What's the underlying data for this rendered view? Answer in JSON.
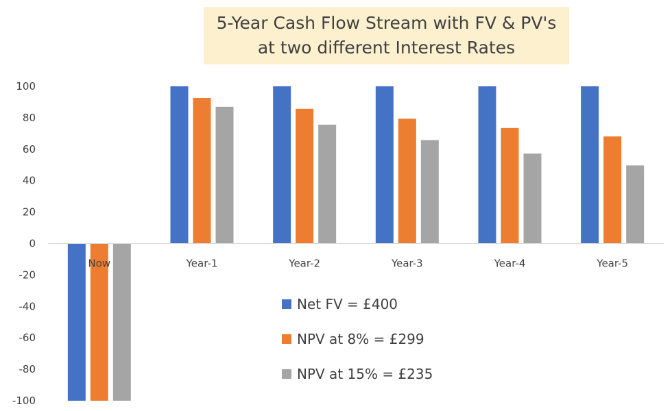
{
  "chart_data": {
    "type": "bar",
    "title": "5-Year Cash Flow Stream with FV & PV's at two different Interest Rates",
    "title_lines": [
      "5-Year Cash Flow Stream with FV & PV's",
      "at two different Interest Rates"
    ],
    "categories": [
      "Now",
      "Year-1",
      "Year-2",
      "Year-3",
      "Year-4",
      "Year-5"
    ],
    "series": [
      {
        "name": "Net FV          = £400",
        "color": "#4472c4",
        "values": [
          -100,
          100,
          100,
          100,
          100,
          100
        ]
      },
      {
        "name": "NPV at 8%   = £299",
        "color": "#ed7d31",
        "values": [
          -100,
          92.6,
          85.7,
          79.4,
          73.5,
          68.1
        ]
      },
      {
        "name": "NPV at 15% = £235",
        "color": "#a5a5a5",
        "values": [
          -100,
          87.0,
          75.6,
          65.8,
          57.2,
          49.7
        ]
      }
    ],
    "ylim": [
      -100,
      100
    ],
    "yticks": [
      100,
      80,
      60,
      40,
      20,
      0,
      -20,
      -40,
      -60,
      -80,
      -100
    ],
    "xlabel": "",
    "ylabel": "",
    "grid": false,
    "legend_position": "inside-bottom-center",
    "title_background": "#fdf0cf"
  }
}
